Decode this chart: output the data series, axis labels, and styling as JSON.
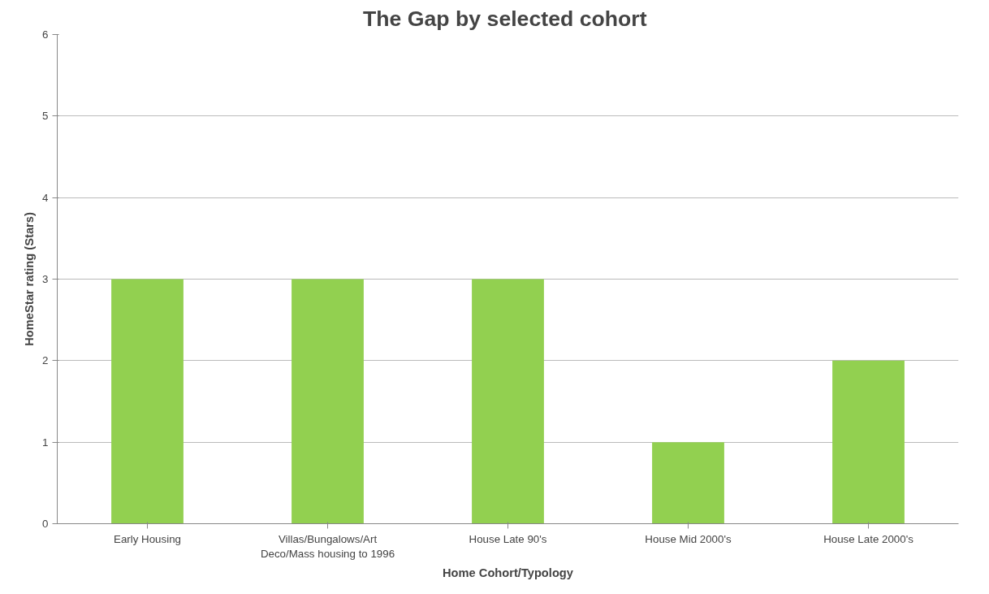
{
  "chart_data": {
    "type": "bar",
    "title": "The Gap by  selected cohort",
    "xlabel": "Home Cohort/Typology",
    "ylabel": "HomeStar rating (Stars)",
    "categories": [
      "Early Housing",
      "Villas/Bungalows/Art Deco/Mass housing to 1996",
      "House Late 90's",
      "House Mid 2000's",
      "House Late 2000's"
    ],
    "values": [
      3,
      3,
      3,
      1,
      2
    ],
    "color": "#92d050",
    "ylim": [
      0,
      6
    ],
    "yticks": [
      0,
      1,
      2,
      3,
      4,
      5,
      6
    ],
    "grid": "y"
  }
}
